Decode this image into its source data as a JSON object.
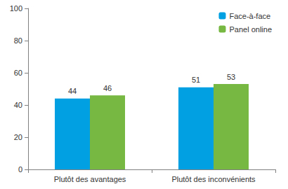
{
  "chart_data": {
    "type": "bar",
    "categories": [
      "Plutôt des avantages",
      "Plutôt des inconvénients"
    ],
    "series": [
      {
        "name": "Face-à-face",
        "color": "#00a0e3",
        "values": [
          44,
          51
        ]
      },
      {
        "name": "Panel online",
        "color": "#77b843",
        "values": [
          46,
          53
        ]
      }
    ],
    "ylim": [
      0,
      100
    ],
    "yticks": [
      0,
      20,
      40,
      60,
      80,
      100
    ],
    "grid": false,
    "legend": "upper right",
    "data_labels": true
  }
}
